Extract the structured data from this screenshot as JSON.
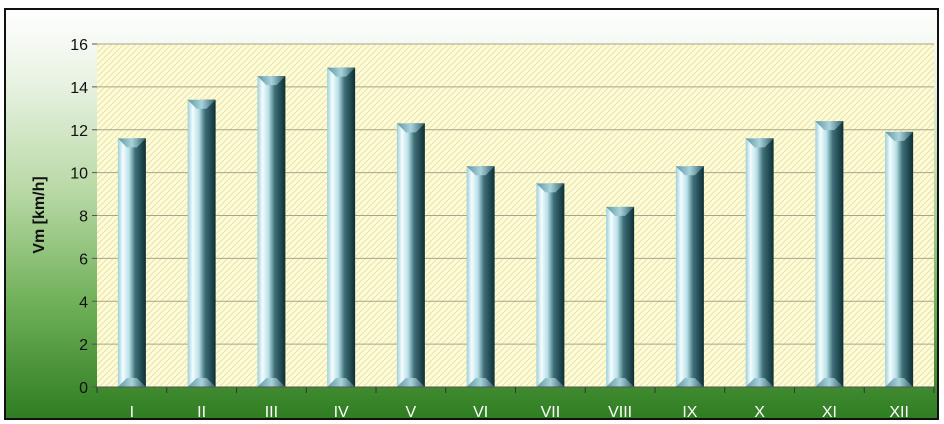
{
  "chart_data": {
    "type": "bar",
    "title": "",
    "xlabel": "",
    "ylabel": "Vm [km/h]",
    "categories": [
      "I",
      "II",
      "III",
      "IV",
      "V",
      "VI",
      "VII",
      "VIII",
      "IX",
      "X",
      "XI",
      "XII"
    ],
    "values": [
      11.6,
      13.4,
      14.5,
      14.9,
      12.3,
      10.3,
      9.5,
      8.4,
      10.3,
      11.6,
      12.4,
      11.9
    ],
    "ylim": [
      0,
      16
    ],
    "yticks": [
      "0",
      "2",
      "4",
      "6",
      "8",
      "10",
      "12",
      "14",
      "16"
    ],
    "grid": true,
    "legend": "none",
    "colors": {
      "plot_background": "#fdfbd8",
      "plot_pattern": "#e9e3a6",
      "bar_light": "#e9fbfd",
      "bar_mid": "#7fb7c4",
      "bar_dark": "#0f3a42",
      "gridline": "#9c9c80",
      "text": "#111111"
    }
  }
}
